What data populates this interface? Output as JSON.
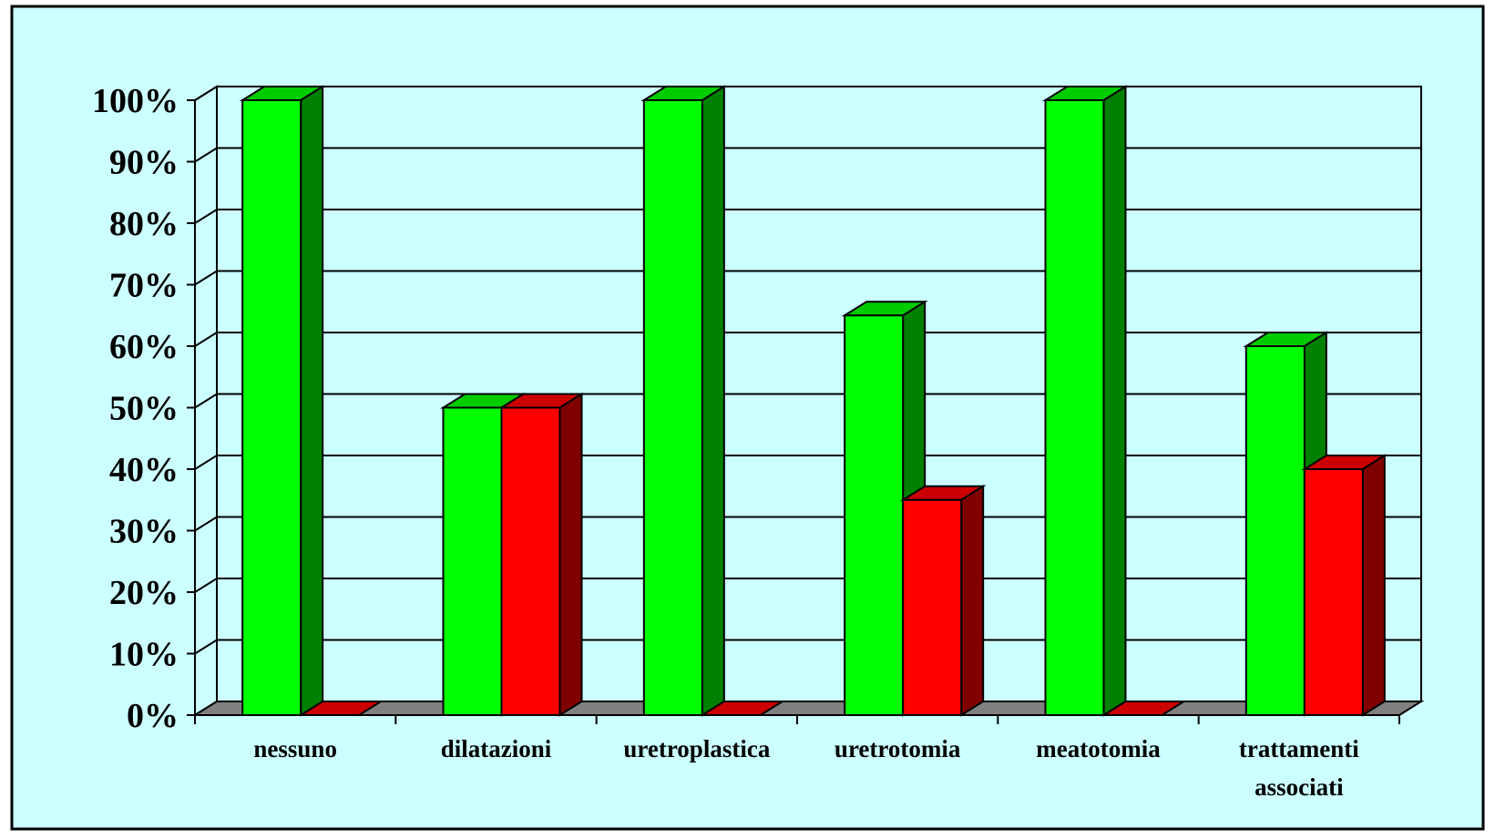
{
  "chart_data": {
    "type": "bar",
    "title": "",
    "xlabel": "",
    "ylabel": "",
    "categories": [
      "nessuno",
      "dilatazioni",
      "uretroplastica",
      "uretrotomia",
      "meatotomia",
      "trattamenti associati"
    ],
    "series": [
      {
        "values": [
          100,
          50,
          100,
          65,
          100,
          60
        ],
        "color": "#00ff00",
        "side_color": "#008000",
        "top_color": "#00cc00"
      },
      {
        "values": [
          0,
          50,
          0,
          35,
          0,
          40
        ],
        "color": "#ff0000",
        "side_color": "#800000",
        "top_color": "#cc0000"
      }
    ],
    "ylim": [
      0,
      100
    ],
    "yticks": [
      0,
      10,
      20,
      30,
      40,
      50,
      60,
      70,
      80,
      90,
      100
    ],
    "ytick_labels": [
      "0%",
      "10%",
      "20%",
      "30%",
      "40%",
      "50%",
      "60%",
      "70%",
      "80%",
      "90%",
      "100%"
    ],
    "grid": true,
    "legend": "none",
    "style": "3d-clustered-column",
    "background_color": "#ccffff",
    "floor_color": "#808080"
  }
}
